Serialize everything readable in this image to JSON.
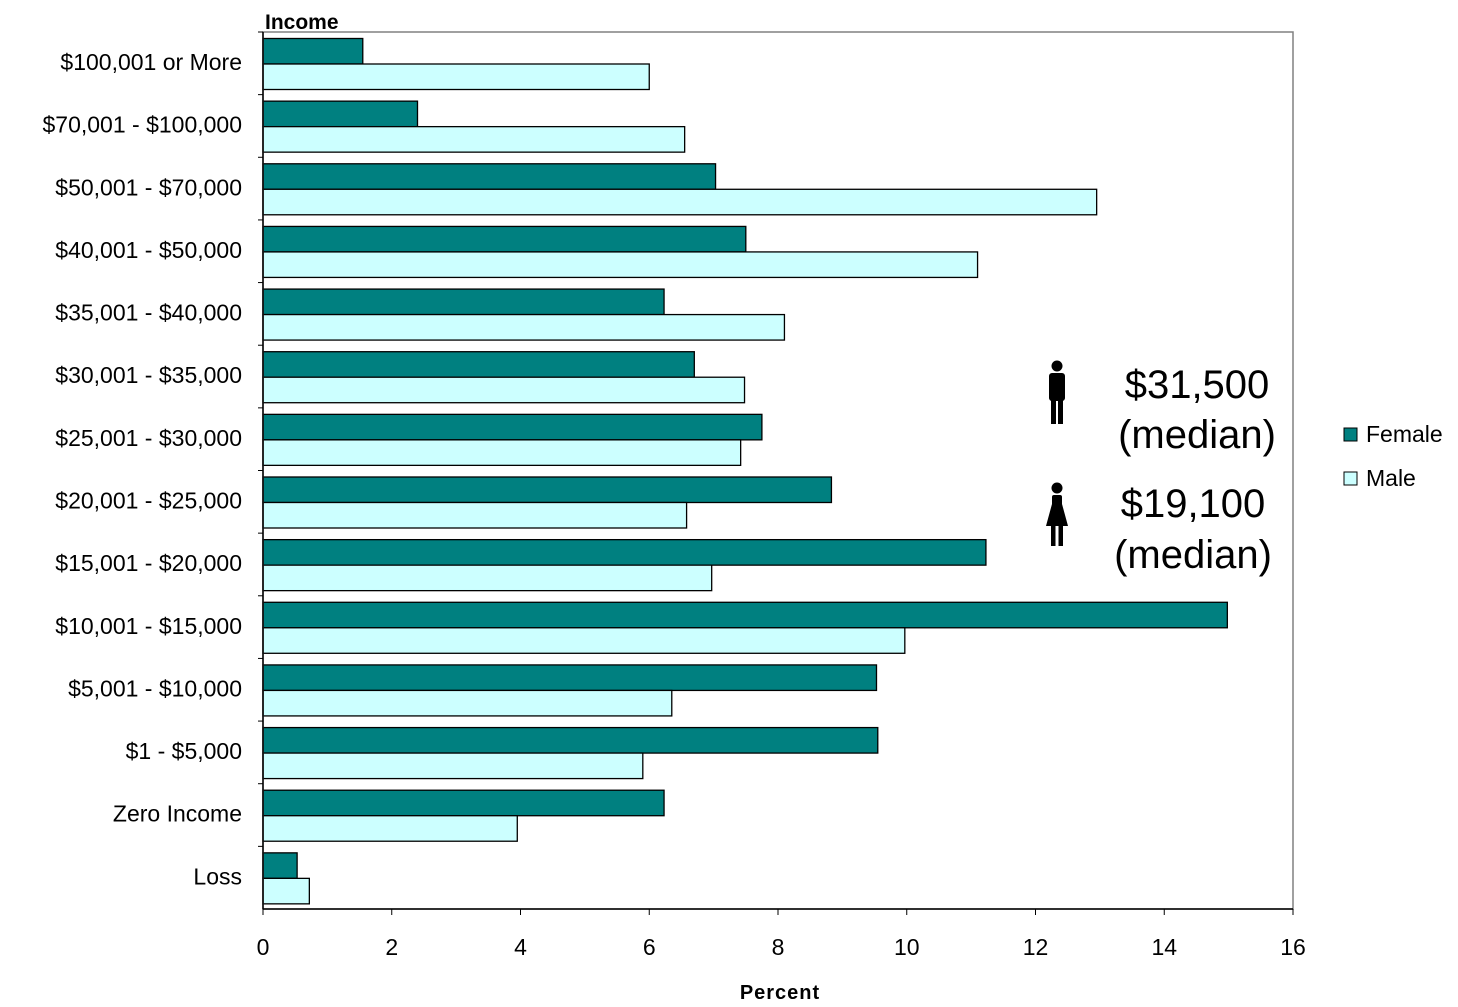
{
  "chart_data": {
    "type": "bar",
    "orientation": "horizontal",
    "ylabel": "Income",
    "xlabel": "Percent",
    "xlim": [
      0,
      16
    ],
    "xticks": [
      0,
      2,
      4,
      6,
      8,
      10,
      12,
      14,
      16
    ],
    "grid": false,
    "legend_position": "right",
    "categories": [
      "$100,001 or More",
      "$70,001 - $100,000",
      "$50,001 - $70,000",
      "$40,001 - $50,000",
      "$35,001 - $40,000",
      "$30,001 - $35,000",
      "$25,001 - $30,000",
      "$20,001 - $25,000",
      "$15,001 - $20,000",
      "$10,001 - $15,000",
      "$5,001 - $10,000",
      "$1 - $5,000",
      "Zero Income",
      "Loss"
    ],
    "series": [
      {
        "name": "Female",
        "color": "#008080",
        "values": [
          1.55,
          2.4,
          7.03,
          7.5,
          6.23,
          6.7,
          7.75,
          8.83,
          11.23,
          14.98,
          9.53,
          9.55,
          6.23,
          0.53
        ]
      },
      {
        "name": "Male",
        "color": "#ccffff",
        "values": [
          6.0,
          6.55,
          12.95,
          11.1,
          8.1,
          7.48,
          7.42,
          6.58,
          6.97,
          9.97,
          6.35,
          5.9,
          3.95,
          0.72
        ]
      }
    ],
    "annotations": [
      {
        "icon": "male-figure-icon",
        "value": "$31,500",
        "note": "(median)"
      },
      {
        "icon": "female-figure-icon",
        "value": "$19,100",
        "note": "(median)"
      }
    ]
  }
}
